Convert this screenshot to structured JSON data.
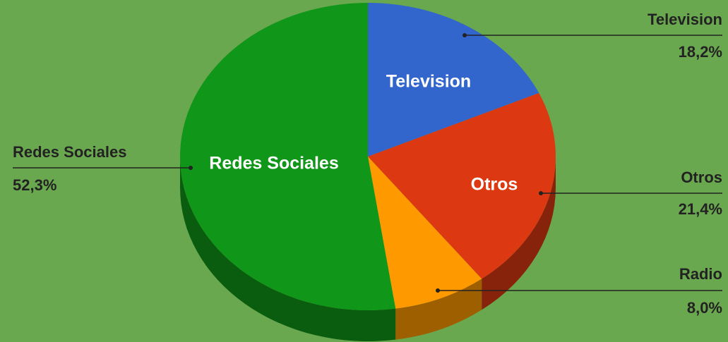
{
  "chart_data": {
    "type": "pie",
    "three_d": true,
    "categories": [
      "Television",
      "Otros",
      "Radio",
      "Redes Sociales"
    ],
    "values": [
      18.2,
      21.4,
      8.0,
      52.3
    ],
    "value_labels": [
      "18,2%",
      "21,4%",
      "8,0%",
      "52,3%"
    ],
    "colors": [
      "#3366cc",
      "#dc3912",
      "#ff9900",
      "#109618"
    ]
  }
}
